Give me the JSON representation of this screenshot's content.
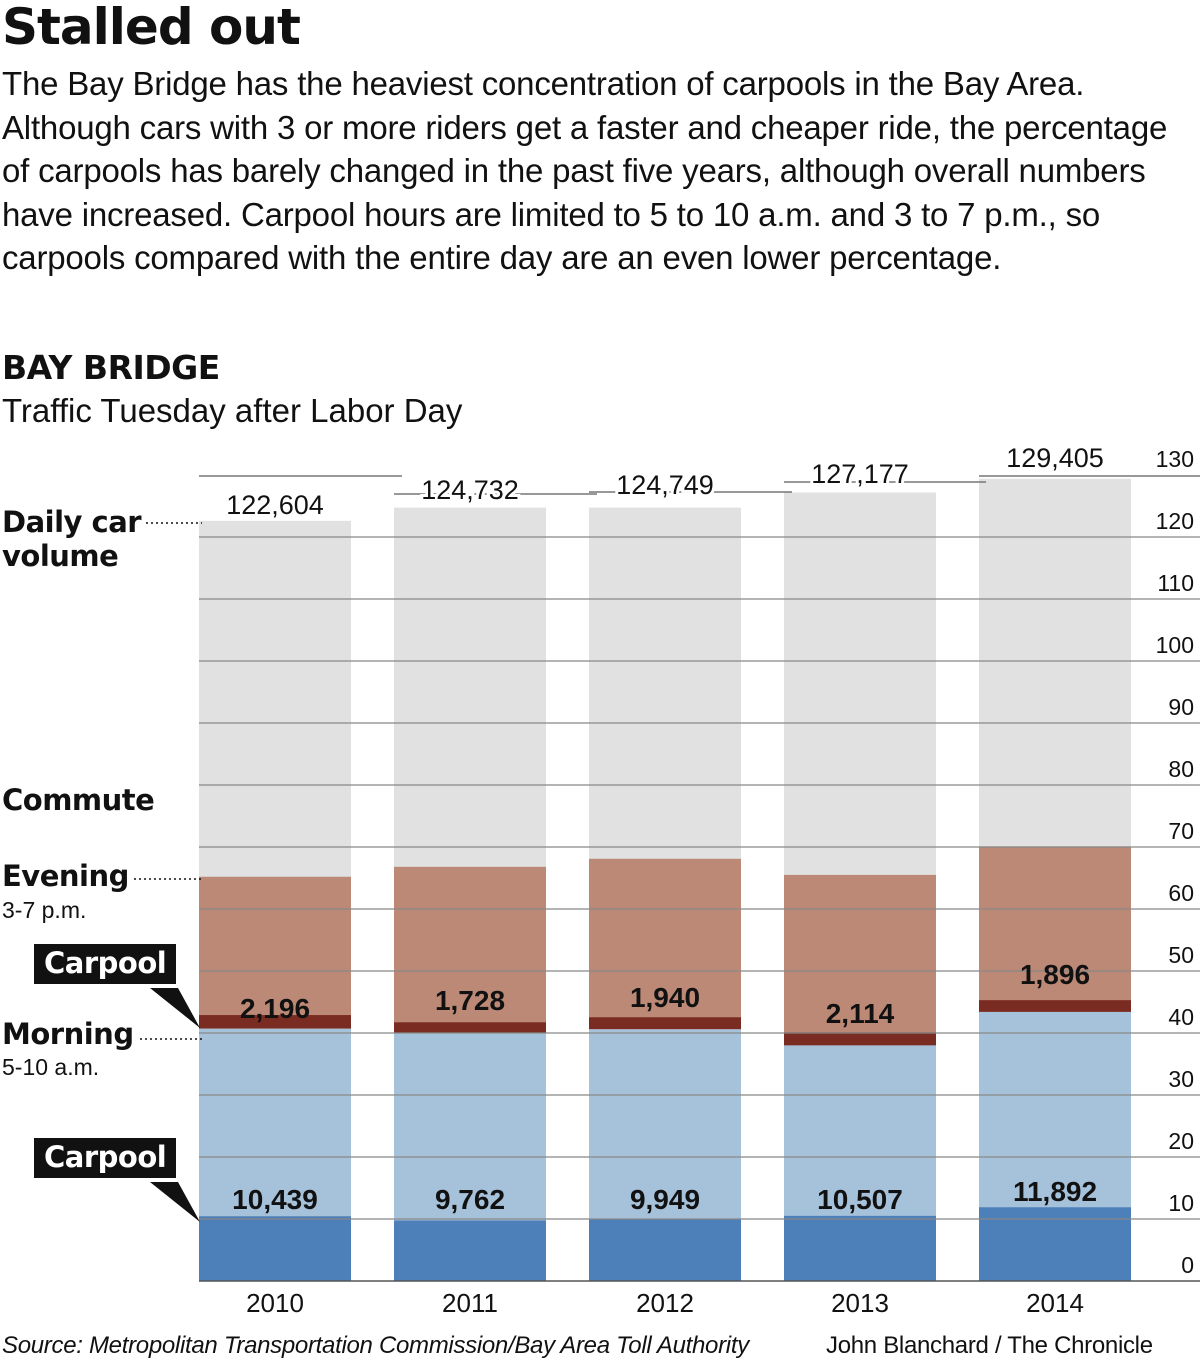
{
  "header": {
    "title": "Stalled out",
    "description": "The Bay Bridge has the heaviest concentration of carpools in the Bay Area. Although cars with 3 or more riders get a faster and cheaper ride, the percentage of carpools has barely changed in the past five years, although overall numbers have increased. Carpool hours are limited to 5 to 10 a.m. and 3 to 7 p.m., so carpools compared with the entire day are an even lower percentage.",
    "chart_title": "BAY BRIDGE",
    "chart_subtitle": "Traffic Tuesday after Labor Day"
  },
  "legend": {
    "daily_line1": "Daily car",
    "daily_line2": "volume",
    "commute": "Commute",
    "evening": "Evening",
    "evening_hours": "3-7 p.m.",
    "carpool_badge": "Carpool",
    "morning": "Morning",
    "morning_hours": "5-10 a.m."
  },
  "chart_data": {
    "type": "bar",
    "stacked": true,
    "categories": [
      "2010",
      "2011",
      "2012",
      "2013",
      "2014"
    ],
    "daily_car_volume": [
      122604,
      124732,
      124749,
      127177,
      129405
    ],
    "daily_labels": [
      "122,604",
      "124,732",
      "124,749",
      "127,177",
      "129,405"
    ],
    "morning_total": [
      40700,
      40000,
      40600,
      38000,
      43400
    ],
    "morning_carpool": [
      10439,
      9762,
      9949,
      10507,
      11892
    ],
    "morning_carpool_labels": [
      "10,439",
      "9,762",
      "9,949",
      "10,507",
      "11,892"
    ],
    "evening_total": [
      24500,
      26800,
      27500,
      27500,
      26700
    ],
    "evening_carpool": [
      2196,
      1728,
      1940,
      2114,
      1896
    ],
    "evening_carpool_labels": [
      "2,196",
      "1,728",
      "1,940",
      "2,114",
      "1,896"
    ],
    "yticks": [
      "0",
      "10",
      "20",
      "30",
      "40",
      "50",
      "60",
      "70",
      "80",
      "90",
      "100",
      "110",
      "120",
      "130"
    ],
    "ylim": [
      0,
      130000
    ],
    "grid": true,
    "colors": {
      "daily": "#e1e1e1",
      "evening": "#bb8976",
      "evening_carpool": "#7a2c22",
      "morning": "#a6c2db",
      "morning_carpool": "#4d7fb8",
      "grid": "#888888"
    }
  },
  "footer": {
    "source": "Source: Metropolitan Transportation Commission/Bay Area Toll Authority",
    "credit": "John Blanchard / The Chronicle"
  }
}
